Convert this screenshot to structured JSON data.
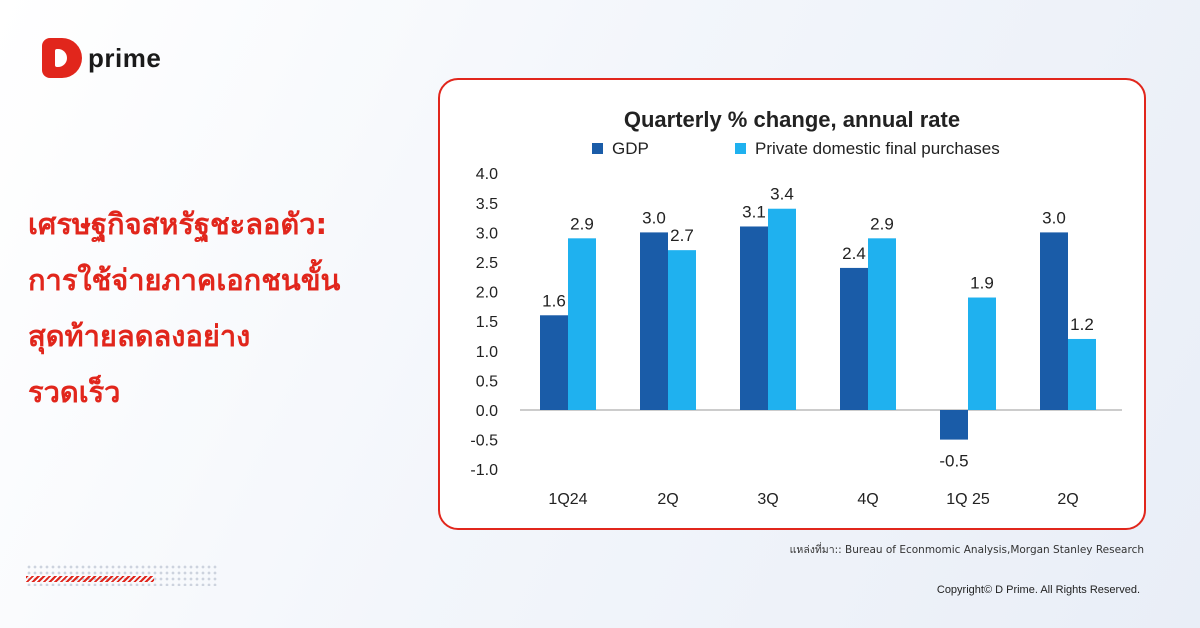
{
  "brand": {
    "logo_text": "prime"
  },
  "headline": {
    "lines": [
      "เศรษฐกิจสหรัฐชะลอตัว:",
      "การใช้จ่ายภาคเอกชนขั้น",
      "สุดท้ายลดลงอย่าง",
      "รวดเร็ว"
    ]
  },
  "colors": {
    "accent": "#e1261c",
    "gdp": "#1a5ca8",
    "private": "#1fb1ef"
  },
  "chart_data": {
    "type": "bar",
    "title": "Quarterly % change, annual rate",
    "categories": [
      "1Q24",
      "2Q",
      "3Q",
      "4Q",
      "1Q 25",
      "2Q"
    ],
    "series": [
      {
        "name": "GDP",
        "color": "#1a5ca8",
        "values": [
          1.6,
          3.0,
          3.1,
          2.4,
          -0.5,
          3.0
        ]
      },
      {
        "name": "Private domestic final purchases",
        "color": "#1fb1ef",
        "values": [
          2.9,
          2.7,
          3.4,
          2.9,
          1.9,
          1.2
        ]
      }
    ],
    "data_labels": [
      [
        "1.6",
        "3.0",
        "3.1",
        "2.4",
        "-0.5",
        "3.0"
      ],
      [
        "2.9",
        "2.7",
        "3.4",
        "2.9",
        "1.9",
        "1.2"
      ]
    ],
    "yticks": [
      "4.0",
      "3.5",
      "3.0",
      "2.5",
      "2.0",
      "1.5",
      "1.0",
      "0.5",
      "0.0",
      "-0.5",
      "-1.0"
    ],
    "ylim": [
      -1.0,
      4.0
    ],
    "legend_position": "top",
    "grid": false
  },
  "footer": {
    "source": "แหล่งที่มา:: Bureau of Econmomic Analysis,Morgan Stanley Research",
    "copyright": "Copyright© D Prime. All Rights Reserved."
  }
}
